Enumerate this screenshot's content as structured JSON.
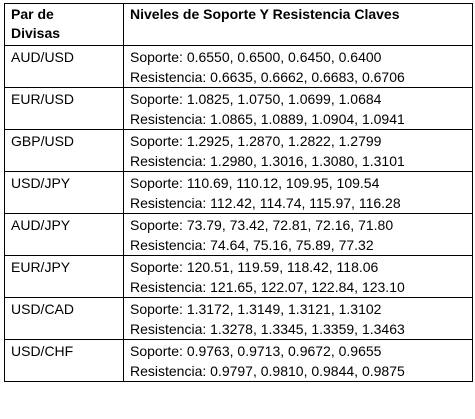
{
  "header": {
    "pair_line1": "Par de",
    "pair_line2": "Divisas",
    "levels": "Niveles de Soporte Y Resistencia Claves"
  },
  "rows": [
    {
      "pair": "AUD/USD",
      "support": "Soporte: 0.6550, 0.6500, 0.6450, 0.6400",
      "resistance": "Resistencia: 0.6635, 0.6662, 0.6683, 0.6706"
    },
    {
      "pair": "EUR/USD",
      "support": "Soporte: 1.0825, 1.0750, 1.0699, 1.0684",
      "resistance": "Resistencia: 1.0865, 1.0889, 1.0904, 1.0941"
    },
    {
      "pair": "GBP/USD",
      "support": "Soporte: 1.2925, 1.2870, 1.2822, 1.2799",
      "resistance": "Resistencia: 1.2980, 1.3016, 1.3080, 1.3101"
    },
    {
      "pair": "USD/JPY",
      "support": "Soporte: 110.69, 110.12, 109.95, 109.54",
      "resistance": "Resistencia: 112.42, 114.74, 115.97, 116.28"
    },
    {
      "pair": "AUD/JPY",
      "support": "Soporte: 73.79, 73.42, 72.81, 72.16, 71.80",
      "resistance": "Resistencia: 74.64, 75.16, 75.89, 77.32"
    },
    {
      "pair": "EUR/JPY",
      "support": "Soporte: 120.51, 119.59, 118.42, 118.06",
      "resistance": "Resistencia: 121.65, 122.07, 122.84, 123.10"
    },
    {
      "pair": "USD/CAD",
      "support": "Soporte: 1.3172, 1.3149, 1.3121, 1.3102",
      "resistance": "Resistencia: 1.3278, 1.3345, 1.3359, 1.3463"
    },
    {
      "pair": "USD/CHF",
      "support": "Soporte: 0.9763, 0.9713, 0.9672, 0.9655",
      "resistance": "Resistencia: 0.9797, 0.9810, 0.9844, 0.9875"
    }
  ]
}
